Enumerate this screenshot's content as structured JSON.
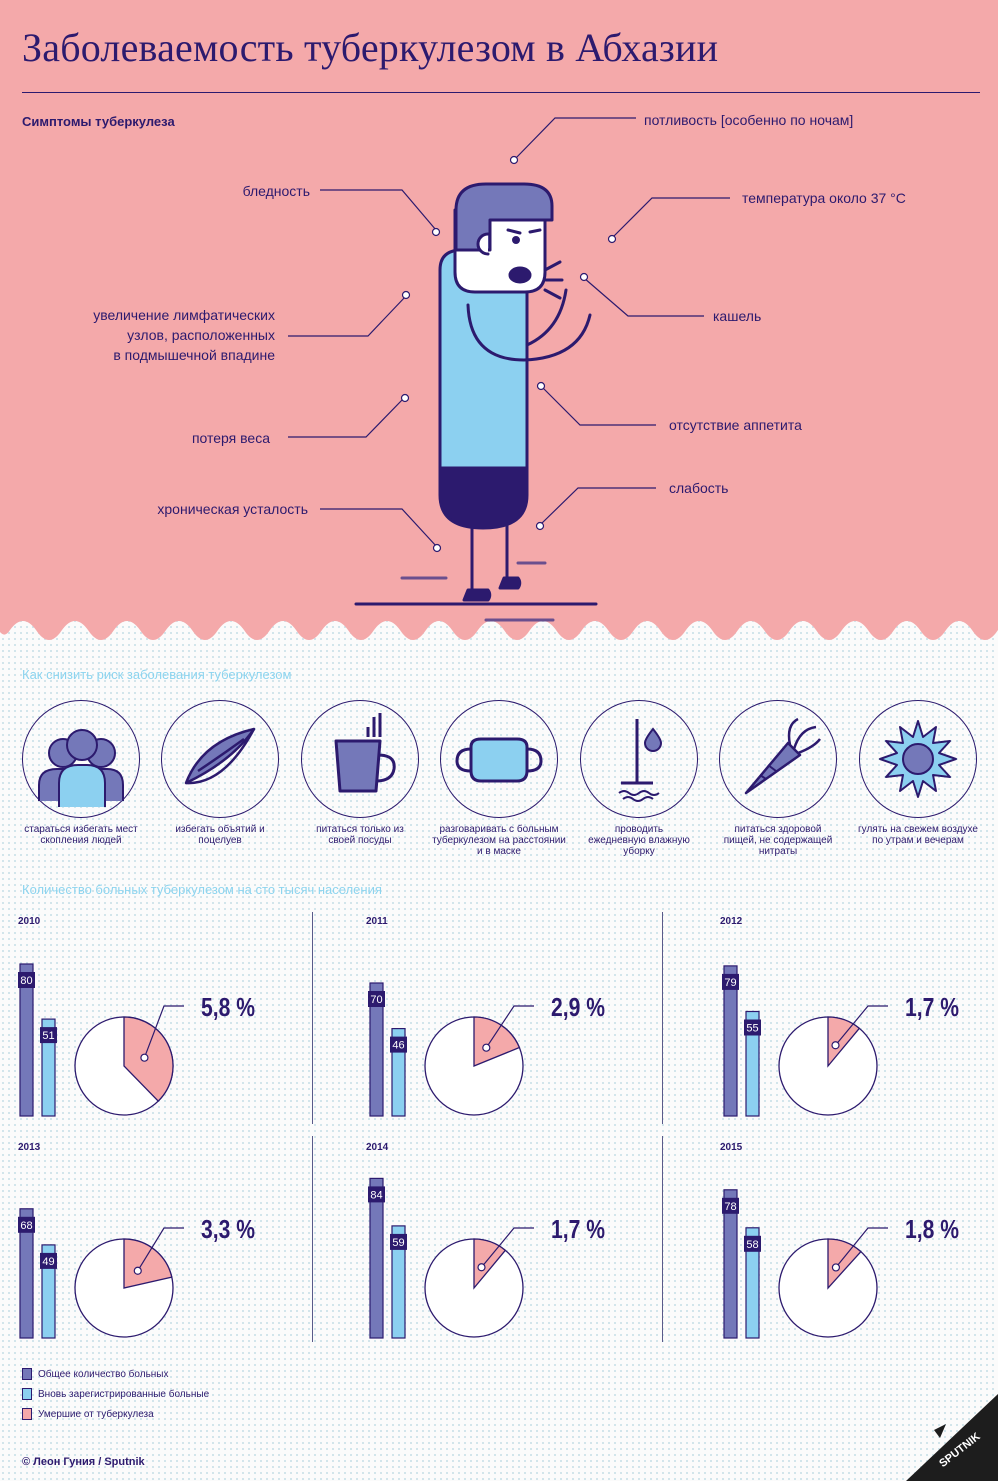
{
  "title": "Заболеваемость туберкулезом в Абхазии",
  "symptoms": {
    "heading": "Симптомы туберкулеза",
    "items": [
      {
        "key": "sweat",
        "label": "потливость [особенно по ночам]"
      },
      {
        "key": "pale",
        "label": "бледность"
      },
      {
        "key": "temp",
        "label": "температура около 37 °С"
      },
      {
        "key": "lymph1",
        "label": "увеличение лимфатических"
      },
      {
        "key": "lymph2",
        "label": "узлов, расположенных"
      },
      {
        "key": "lymph3",
        "label": "в подмышечной впадине"
      },
      {
        "key": "cough",
        "label": "кашель"
      },
      {
        "key": "weight",
        "label": "потеря веса"
      },
      {
        "key": "appetite",
        "label": "отсутствие аппетита"
      },
      {
        "key": "weak",
        "label": "слабость"
      },
      {
        "key": "tired",
        "label": "хроническая усталость"
      }
    ]
  },
  "prevention": {
    "heading": "Как снизить риск заболевания туберкулезом",
    "items": [
      {
        "icon": "crowd-icon",
        "lines": [
          "стараться избегать мест",
          "скопления людей"
        ]
      },
      {
        "icon": "lips-icon",
        "lines": [
          "избегать объятий и",
          "поцелуев"
        ]
      },
      {
        "icon": "cup-icon",
        "lines": [
          "питаться только из",
          "своей посуды"
        ]
      },
      {
        "icon": "mask-icon",
        "lines": [
          "разговаривать  с больным",
          "туберкулезом на расстоянии",
          "и в маске"
        ]
      },
      {
        "icon": "mop-icon",
        "lines": [
          "проводить",
          "ежедневную влажную",
          "уборку"
        ]
      },
      {
        "icon": "carrot-icon",
        "lines": [
          "питаться здоровой",
          "пищей, не содержащей",
          "нитраты"
        ]
      },
      {
        "icon": "sun-icon",
        "lines": [
          "гулять на свежем воздухе",
          "по утрам и вечерам"
        ]
      }
    ]
  },
  "stats_heading": "Количество больных туберкулезом на сто тысяч населения",
  "legend": [
    {
      "label": "Общее количество больных",
      "color": "#7478b9"
    },
    {
      "label": "Вновь зарегистрированные больные",
      "color": "#8cd0f0"
    },
    {
      "label": "Умершие от туберкулеза",
      "color": "#f3a8aa"
    }
  ],
  "chart_data": [
    {
      "type": "bar+pie",
      "year": "2010",
      "total": 80,
      "new": 51,
      "deaths_pct": 5.8,
      "deaths_label": "5,8 %"
    },
    {
      "type": "bar+pie",
      "year": "2011",
      "total": 70,
      "new": 46,
      "deaths_pct": 2.9,
      "deaths_label": "2,9 %"
    },
    {
      "type": "bar+pie",
      "year": "2012",
      "total": 79,
      "new": 55,
      "deaths_pct": 1.7,
      "deaths_label": "1,7 %"
    },
    {
      "type": "bar+pie",
      "year": "2013",
      "total": 68,
      "new": 49,
      "deaths_pct": 3.3,
      "deaths_label": "3,3 %"
    },
    {
      "type": "bar+pie",
      "year": "2014",
      "total": 84,
      "new": 59,
      "deaths_pct": 1.7,
      "deaths_label": "1,7 %"
    },
    {
      "type": "bar+pie",
      "year": "2015",
      "total": 78,
      "new": 58,
      "deaths_pct": 1.8,
      "deaths_label": "1,8 %"
    }
  ],
  "colors": {
    "navy": "#2c1a6e",
    "pink": "#f4a9aa",
    "blue": "#8cd0f0",
    "purple": "#7478b9"
  },
  "credit": "© Леон Гуния / Sputnik",
  "logo_text": "SPUTNIK"
}
